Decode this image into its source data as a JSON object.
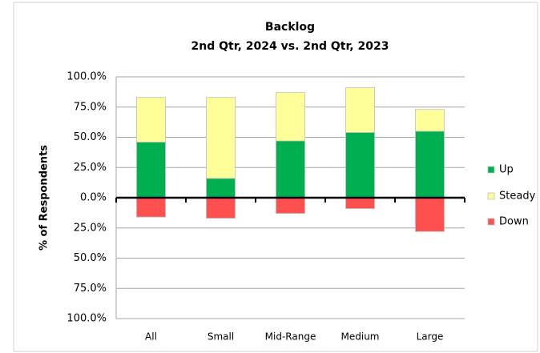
{
  "chart_data": {
    "type": "stacked_bar",
    "title": "Backlog",
    "subtitle": "2nd Qtr, 2024 vs. 2nd Qtr, 2023",
    "y_label": "% of Respondents",
    "categories": [
      "All",
      "Small",
      "Mid-Range",
      "Medium",
      "Large"
    ],
    "series": [
      {
        "name": "Up",
        "color": "#00b050",
        "values": [
          46,
          16,
          47,
          54,
          55
        ]
      },
      {
        "name": "Steady",
        "color": "#ffff99",
        "values": [
          37,
          67,
          40,
          37,
          18
        ]
      },
      {
        "name": "Down",
        "color": "#ff5050",
        "values": [
          -16,
          -17,
          -13,
          -9,
          -28
        ]
      }
    ],
    "ylim": [
      -100,
      100
    ],
    "yticks": [
      {
        "value": 100,
        "label": "100.0%"
      },
      {
        "value": 75,
        "label": "75.0%"
      },
      {
        "value": 50,
        "label": "50.0%"
      },
      {
        "value": 25,
        "label": "25.0%"
      },
      {
        "value": 0,
        "label": "0.0%"
      },
      {
        "value": -25,
        "label": "25.0%"
      },
      {
        "value": -50,
        "label": "50.0%"
      },
      {
        "value": -75,
        "label": "75.0%"
      },
      {
        "value": -100,
        "label": "100.0%"
      }
    ],
    "grid": true,
    "legend": "right"
  }
}
